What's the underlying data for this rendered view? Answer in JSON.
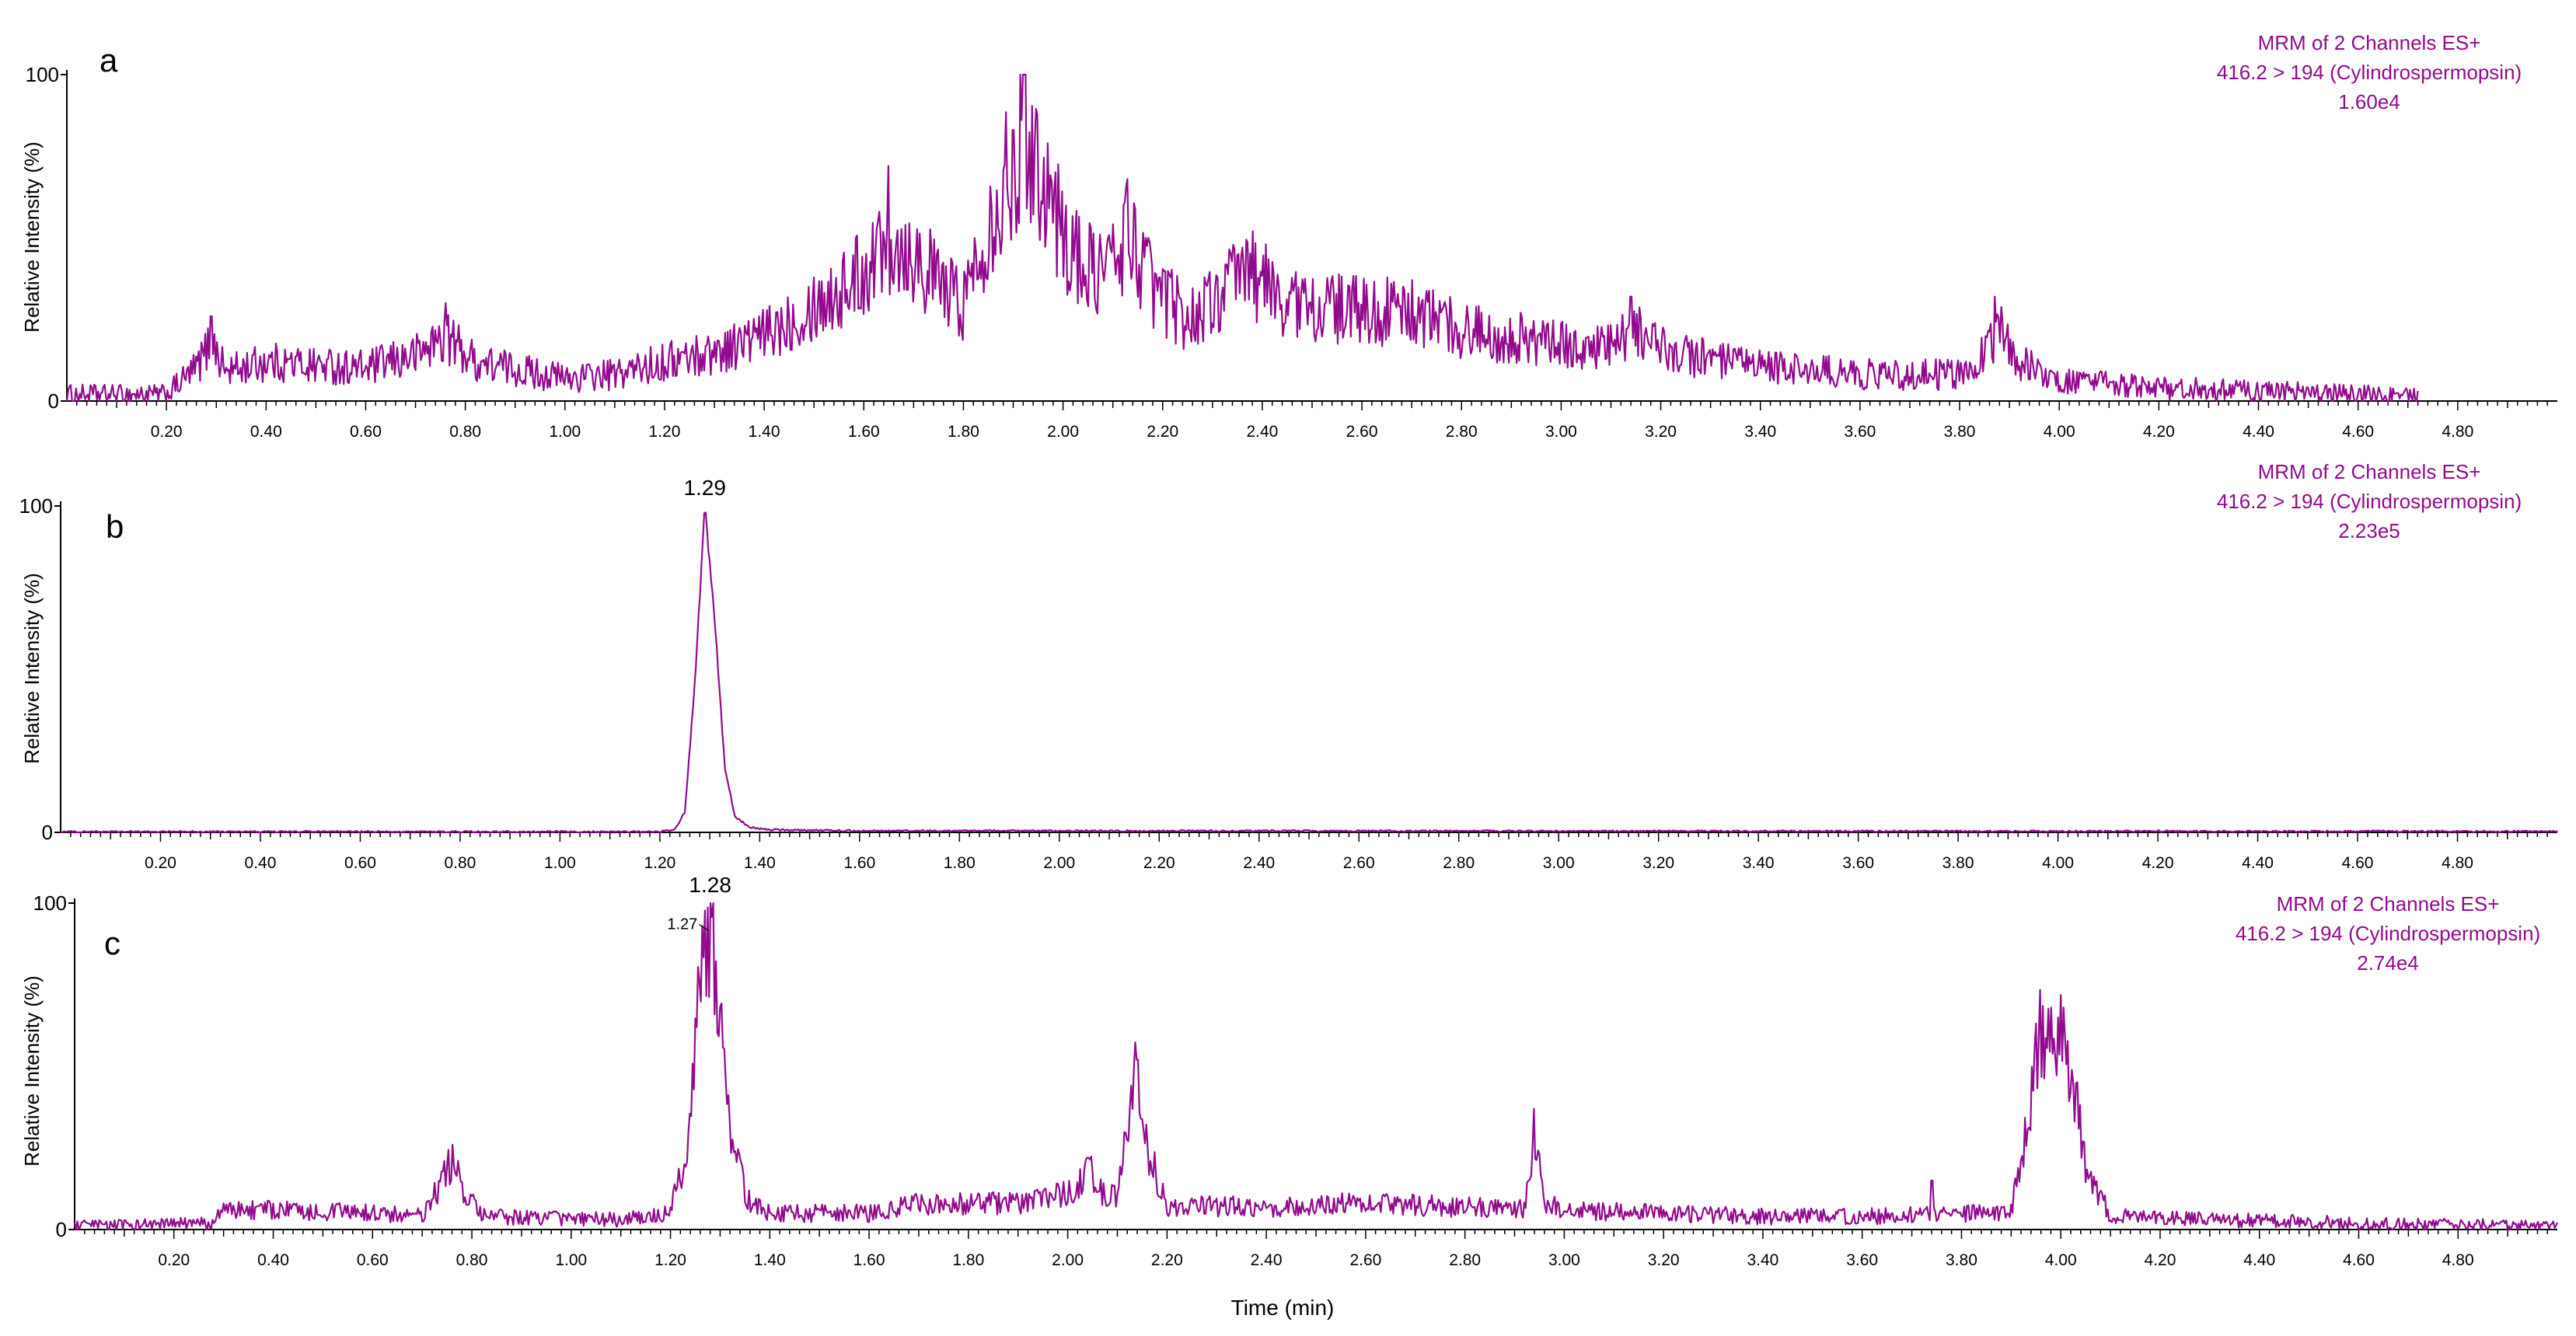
{
  "figure": {
    "xlabel": "Time (min)",
    "ylabel": "Relative Intensity (%)",
    "trace_color": "#930a8e",
    "axis_color": "#000000"
  },
  "chart_data": [
    {
      "type": "line",
      "panel_label": "a",
      "xlim": [
        0.0,
        5.0
      ],
      "ylim": [
        0,
        100
      ],
      "yticks": [
        "0",
        "100"
      ],
      "xticks": [
        "0.20",
        "0.40",
        "0.60",
        "0.80",
        "1.00",
        "1.20",
        "1.40",
        "1.60",
        "1.80",
        "2.00",
        "2.20",
        "2.40",
        "2.60",
        "2.80",
        "3.00",
        "3.20",
        "3.40",
        "3.60",
        "3.80",
        "4.00",
        "4.20",
        "4.40",
        "4.60",
        "4.80"
      ],
      "xtick_values": [
        0.2,
        0.4,
        0.6,
        0.8,
        1.0,
        1.2,
        1.4,
        1.6,
        1.8,
        2.0,
        2.2,
        2.4,
        2.6,
        2.8,
        3.0,
        3.2,
        3.4,
        3.6,
        3.8,
        4.0,
        4.2,
        4.4,
        4.6,
        4.8
      ],
      "info": [
        "MRM of 2 Channels ES+",
        "416.2 > 194 (Cylindrospermopsin)",
        "1.60e4"
      ],
      "peak_labels": [],
      "trace_end": 4.72,
      "profile": {
        "x": [
          0.0,
          0.2,
          0.26,
          0.29,
          0.32,
          0.4,
          0.6,
          0.7,
          0.76,
          0.82,
          1.0,
          1.1,
          1.2,
          1.3,
          1.4,
          1.5,
          1.55,
          1.6,
          1.65,
          1.7,
          1.75,
          1.8,
          1.85,
          1.9,
          1.92,
          1.96,
          2.0,
          2.05,
          2.1,
          2.13,
          2.18,
          2.25,
          2.3,
          2.37,
          2.45,
          2.55,
          2.7,
          2.8,
          3.0,
          3.1,
          3.15,
          3.2,
          3.35,
          3.45,
          3.6,
          3.8,
          3.85,
          3.88,
          3.92,
          4.0,
          4.2,
          4.4,
          4.6,
          4.72
        ],
        "y": [
          2,
          2,
          10,
          18,
          9,
          12,
          10,
          14,
          20,
          12,
          7,
          8,
          12,
          15,
          20,
          30,
          33,
          40,
          50,
          45,
          36,
          30,
          55,
          72,
          88,
          70,
          50,
          40,
          42,
          52,
          35,
          25,
          30,
          40,
          30,
          28,
          27,
          22,
          17,
          16,
          22,
          16,
          11,
          10,
          8,
          8,
          15,
          22,
          12,
          6,
          4,
          3,
          2,
          1
        ]
      },
      "noise": 0.3,
      "noise_abs": 2.5,
      "spikes": [
        [
          0.29,
          26
        ],
        [
          0.76,
          30
        ],
        [
          1.65,
          72
        ],
        [
          1.9,
          83
        ],
        [
          1.92,
          100
        ],
        [
          2.13,
          68
        ],
        [
          2.38,
          52
        ],
        [
          3.14,
          32
        ],
        [
          3.87,
          32
        ]
      ]
    },
    {
      "type": "line",
      "panel_label": "b",
      "xlim": [
        0.0,
        5.0
      ],
      "ylim": [
        0,
        100
      ],
      "yticks": [
        "0",
        "100"
      ],
      "xticks": [
        "0.20",
        "0.40",
        "0.60",
        "0.80",
        "1.00",
        "1.20",
        "1.40",
        "1.60",
        "1.80",
        "2.00",
        "2.20",
        "2.40",
        "2.60",
        "2.80",
        "3.00",
        "3.20",
        "3.40",
        "3.60",
        "3.80",
        "4.00",
        "4.20",
        "4.40",
        "4.60",
        "4.80"
      ],
      "xtick_values": [
        0.2,
        0.4,
        0.6,
        0.8,
        1.0,
        1.2,
        1.4,
        1.6,
        1.8,
        2.0,
        2.2,
        2.4,
        2.6,
        2.8,
        3.0,
        3.2,
        3.4,
        3.6,
        3.8,
        4.0,
        4.2,
        4.4,
        4.6,
        4.8
      ],
      "info": [
        "MRM of 2 Channels ES+",
        "416.2 > 194 (Cylindrospermopsin)",
        "2.23e5"
      ],
      "peak_labels": [
        {
          "text": "1.29",
          "x": 1.29,
          "y": 100
        }
      ],
      "trace_end": 5.0,
      "profile": {
        "x": [
          0.0,
          1.2,
          1.23,
          1.25,
          1.27,
          1.29,
          1.31,
          1.33,
          1.35,
          1.38,
          1.42,
          1.6,
          5.0
        ],
        "y": [
          0.2,
          0.2,
          1,
          6,
          45,
          100,
          65,
          20,
          5,
          1.5,
          0.8,
          0.5,
          0.3
        ]
      },
      "noise": 0.02,
      "noise_abs": 0.25,
      "spikes": []
    },
    {
      "type": "line",
      "panel_label": "c",
      "xlim": [
        0.0,
        5.0
      ],
      "ylim": [
        0,
        100
      ],
      "yticks": [
        "0",
        "100"
      ],
      "xticks": [
        "0.20",
        "0.40",
        "0.60",
        "0.80",
        "1.00",
        "1.20",
        "1.40",
        "1.60",
        "1.80",
        "2.00",
        "2.20",
        "2.40",
        "2.60",
        "2.80",
        "3.00",
        "3.20",
        "3.40",
        "3.60",
        "3.80",
        "4.00",
        "4.20",
        "4.40",
        "4.60",
        "4.80"
      ],
      "xtick_values": [
        0.2,
        0.4,
        0.6,
        0.8,
        1.0,
        1.2,
        1.4,
        1.6,
        1.8,
        2.0,
        2.2,
        2.4,
        2.6,
        2.8,
        3.0,
        3.2,
        3.4,
        3.6,
        3.8,
        4.0,
        4.2,
        4.4,
        4.6,
        4.8
      ],
      "info": [
        "MRM of 2 Channels ES+",
        "416.2 > 194 (Cylindrospermopsin)",
        "2.74e4"
      ],
      "peak_labels": [
        {
          "text": "1.28",
          "x": 1.28,
          "y": 100
        },
        {
          "text": "1.27",
          "x": 1.27,
          "y": 93
        }
      ],
      "trace_end": 5.0,
      "profile": {
        "x": [
          0.0,
          0.28,
          0.3,
          0.4,
          0.6,
          0.7,
          0.74,
          0.76,
          0.78,
          0.82,
          1.1,
          1.2,
          1.24,
          1.26,
          1.28,
          1.3,
          1.32,
          1.35,
          1.4,
          1.6,
          1.7,
          1.9,
          2.02,
          2.04,
          2.06,
          2.1,
          2.12,
          2.14,
          2.16,
          2.2,
          2.4,
          2.6,
          2.8,
          2.92,
          2.94,
          2.96,
          3.0,
          3.2,
          3.4,
          3.6,
          3.8,
          3.9,
          3.93,
          3.96,
          3.99,
          4.02,
          4.05,
          4.1,
          4.3,
          4.6,
          5.0
        ],
        "y": [
          1,
          2,
          6,
          6,
          5,
          4,
          14,
          22,
          12,
          4,
          3,
          5,
          30,
          80,
          95,
          72,
          35,
          10,
          5,
          5,
          8,
          8,
          12,
          20,
          12,
          10,
          30,
          50,
          25,
          7,
          7,
          8,
          7,
          6,
          30,
          8,
          6,
          5,
          4,
          4,
          5,
          5,
          30,
          60,
          62,
          48,
          20,
          4,
          3,
          2,
          1
        ]
      },
      "noise": 0.25,
      "noise_abs": 1.5,
      "spikes": [
        [
          0.3,
          8
        ],
        [
          0.76,
          26
        ],
        [
          1.28,
          100
        ],
        [
          2.04,
          22
        ],
        [
          2.14,
          52
        ],
        [
          2.94,
          37
        ],
        [
          3.74,
          15
        ],
        [
          3.98,
          68
        ]
      ]
    }
  ]
}
